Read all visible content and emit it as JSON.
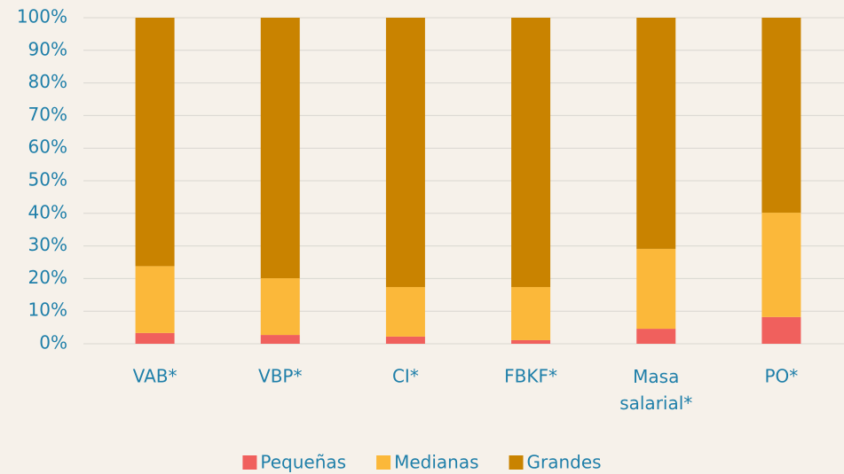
{
  "chart_data": {
    "type": "stacked_bar",
    "categories": [
      "VAB*",
      "VBP*",
      "CI*",
      "FBKF*",
      "Masa salarial*",
      "PO*"
    ],
    "series": [
      {
        "name": "Pequeñas",
        "color": "#f0605d",
        "values": [
          3.3,
          2.7,
          2.2,
          1.1,
          4.6,
          8.2
        ]
      },
      {
        "name": "Medianas",
        "color": "#fbb83a",
        "values": [
          20.5,
          17.4,
          15.2,
          16.3,
          24.5,
          32.0
        ]
      },
      {
        "name": "Grandes",
        "color": "#c98300",
        "values": [
          76.2,
          79.9,
          82.6,
          82.6,
          70.9,
          59.8
        ]
      }
    ],
    "ylim": [
      0,
      100
    ],
    "yticks": [
      {
        "value": 0,
        "label": "0%"
      },
      {
        "value": 10,
        "label": "10%"
      },
      {
        "value": 20,
        "label": "20%"
      },
      {
        "value": 30,
        "label": "30%"
      },
      {
        "value": 40,
        "label": "40%"
      },
      {
        "value": 50,
        "label": "50%"
      },
      {
        "value": 60,
        "label": "60%"
      },
      {
        "value": 70,
        "label": "70%"
      },
      {
        "value": 80,
        "label": "80%"
      },
      {
        "value": 90,
        "label": "90%"
      },
      {
        "value": 100,
        "label": "100%"
      }
    ],
    "grid": true,
    "legend": "bottom"
  }
}
